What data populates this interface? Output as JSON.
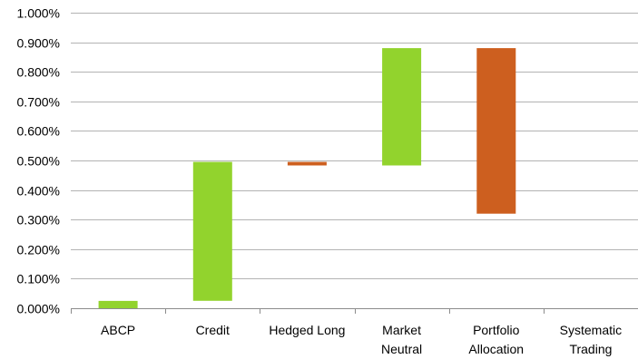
{
  "chart_data": {
    "type": "bar",
    "subtype": "waterfall",
    "title": "",
    "xlabel": "",
    "ylabel": "",
    "ylim": [
      0,
      1.0
    ],
    "y_unit": "%",
    "grid": true,
    "legend": "none",
    "categories": [
      [
        "ABCP"
      ],
      [
        "Credit"
      ],
      [
        "Hedged Long"
      ],
      [
        "Market",
        "Neutral"
      ],
      [
        "Portfolio",
        "Allocation"
      ],
      [
        "Systematic",
        "Trading"
      ]
    ],
    "y_ticks": [
      "0.000%",
      "0.100%",
      "0.200%",
      "0.300%",
      "0.400%",
      "0.500%",
      "0.600%",
      "0.700%",
      "0.800%",
      "0.900%",
      "1.000%"
    ],
    "bars": [
      {
        "category": "ABCP",
        "low": 0.0,
        "high": 0.025,
        "direction": "increase"
      },
      {
        "category": "Credit",
        "low": 0.025,
        "high": 0.495,
        "direction": "increase"
      },
      {
        "category": "Hedged Long",
        "low": 0.483,
        "high": 0.495,
        "direction": "decrease"
      },
      {
        "category": "Market Neutral",
        "low": 0.483,
        "high": 0.88,
        "direction": "increase"
      },
      {
        "category": "Portfolio Allocation",
        "low": 0.32,
        "high": 0.88,
        "direction": "decrease"
      },
      {
        "category": "Systematic Trading",
        "low": 0.32,
        "high": 0.32,
        "direction": "none"
      }
    ],
    "colors": {
      "increase": "#92d32d",
      "decrease": "#cd5f1f",
      "gridline": "#b3b3b3",
      "axis": "#8c8c8c"
    }
  }
}
